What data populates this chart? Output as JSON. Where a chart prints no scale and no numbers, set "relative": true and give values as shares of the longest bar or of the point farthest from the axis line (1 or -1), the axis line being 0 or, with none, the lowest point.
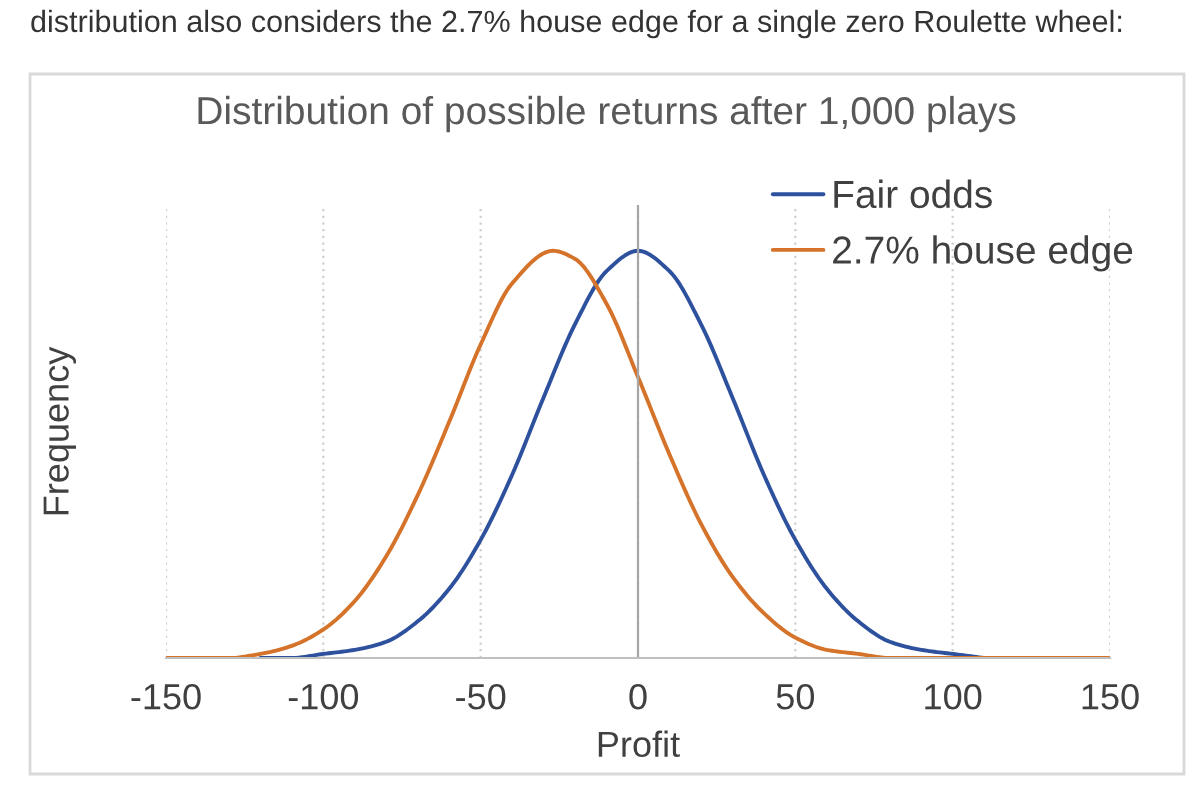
{
  "chart_data": {
    "type": "line",
    "title": "Distribution of possible returns after 1,000 plays",
    "xlabel": "Profit",
    "ylabel": "Frequency",
    "annotations": [
      "distribution also considers the 2.7% house edge for a single zero Roulette wheel:"
    ],
    "relative": true,
    "xlim": [
      -150,
      150
    ],
    "xticks": [
      -150,
      -100,
      -50,
      0,
      50,
      100,
      150
    ],
    "grid": "x",
    "legend": "top right",
    "series": [
      {
        "name": "Fair odds",
        "color": "#2e519e",
        "x": [
          -120,
          -110,
          -100,
          -90,
          -80,
          -70,
          -60,
          -50,
          -40,
          -30,
          -20,
          -10,
          0,
          10,
          20,
          30,
          40,
          50,
          60,
          70,
          80,
          90,
          100,
          110
        ],
        "values": [
          0,
          0,
          0.01,
          0.02,
          0.04,
          0.09,
          0.17,
          0.29,
          0.45,
          0.64,
          0.82,
          0.95,
          1,
          0.95,
          0.82,
          0.64,
          0.45,
          0.29,
          0.17,
          0.09,
          0.04,
          0.02,
          0.01,
          0
        ]
      },
      {
        "name": "2.7% house edge",
        "color": "#d5732a",
        "x": [
          -150,
          -140,
          -130,
          -120,
          -110,
          -100,
          -90,
          -80,
          -70,
          -60,
          -50,
          -40,
          -27,
          -20,
          -10,
          0,
          10,
          20,
          30,
          40,
          50,
          60,
          70,
          80,
          90,
          100,
          110,
          120,
          130,
          140,
          150
        ],
        "values": [
          0,
          0,
          0,
          0.01,
          0.03,
          0.07,
          0.14,
          0.25,
          0.4,
          0.58,
          0.77,
          0.92,
          1,
          0.98,
          0.87,
          0.69,
          0.5,
          0.33,
          0.2,
          0.11,
          0.05,
          0.02,
          0.01,
          0,
          0,
          0,
          0,
          0,
          0,
          0,
          0
        ]
      }
    ]
  }
}
